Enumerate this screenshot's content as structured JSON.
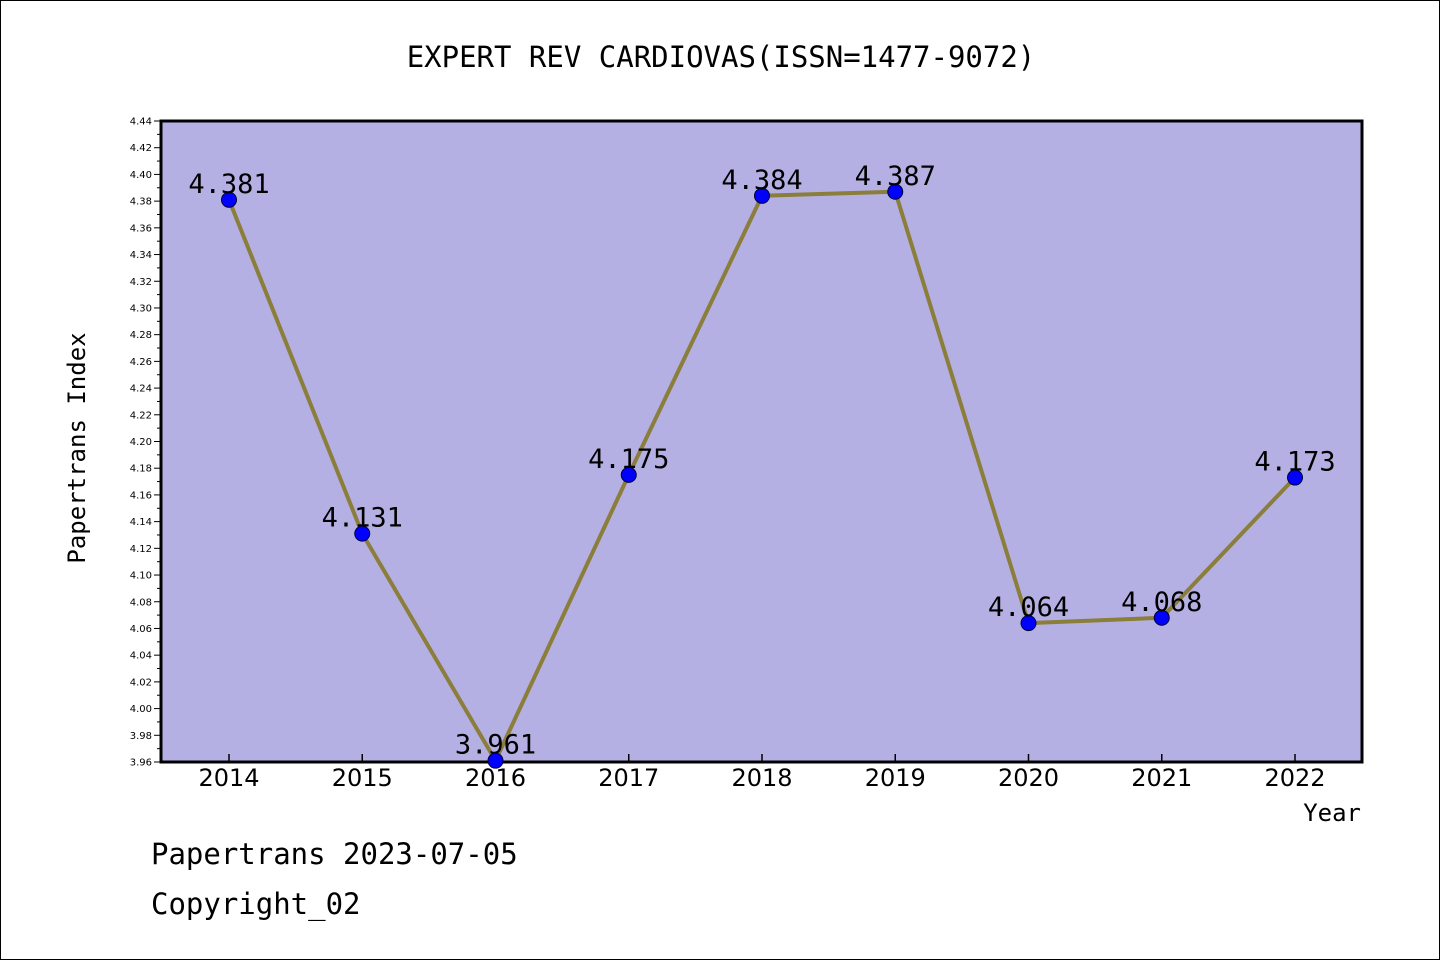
{
  "chart_data": {
    "type": "line",
    "title": "EXPERT REV CARDIOVAS(ISSN=1477-9072)",
    "xlabel": "Year",
    "ylabel": "Papertrans Index",
    "x": [
      "2014",
      "2015",
      "2016",
      "2017",
      "2018",
      "2019",
      "2020",
      "2021",
      "2022"
    ],
    "series": [
      {
        "values": [
          4.381,
          4.131,
          3.961,
          4.175,
          4.384,
          4.387,
          4.064,
          4.068,
          4.173
        ],
        "data_labels": [
          "4.381",
          "4.131",
          "3.961",
          "4.175",
          "4.384",
          "4.387",
          "4.064",
          "4.068",
          "4.173"
        ],
        "line_color": "#8b7d3a",
        "marker_color": "#0000ff"
      }
    ],
    "ylim": [
      3.96,
      4.44
    ],
    "yticks": [
      "3.96",
      "3.98",
      "4.00",
      "4.02",
      "4.04",
      "4.06",
      "4.08",
      "4.10",
      "4.12",
      "4.14",
      "4.16",
      "4.18",
      "4.20",
      "4.22",
      "4.24",
      "4.26",
      "4.28",
      "4.30",
      "4.32",
      "4.34",
      "4.36",
      "4.38",
      "4.40",
      "4.42",
      "4.44"
    ],
    "plot_background": "#b4b0e4",
    "grid": false,
    "legend": "none"
  },
  "footer": {
    "date_text": "Papertrans 2023-07-05",
    "copyright_text": "Copyright_02"
  }
}
